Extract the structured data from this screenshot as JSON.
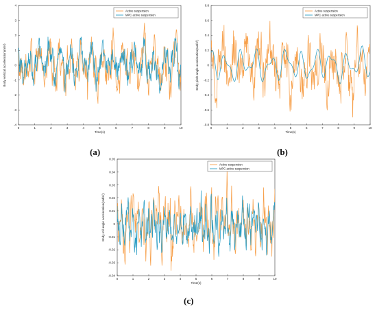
{
  "figure": {
    "panel_labels": [
      "(a)",
      "(b)",
      "(c)"
    ]
  },
  "colors": {
    "active": "#F7A04B",
    "mpc": "#2A9DC4"
  },
  "chart_data": [
    {
      "panel": "(a)",
      "type": "line",
      "xlabel": "Time(s)",
      "ylabel": "Body vertical acceleration(m/s²)",
      "xlim": [
        0,
        10
      ],
      "ylim": [
        -4,
        4
      ],
      "xticks": [
        "0",
        "1",
        "2",
        "3",
        "4",
        "5",
        "6",
        "7",
        "8",
        "9",
        "10"
      ],
      "yticks": [
        "-4",
        "-3",
        "-2",
        "-1",
        "0",
        "1",
        "2",
        "3",
        "4"
      ],
      "legend": "top-right",
      "series": [
        {
          "name": "Active suspension",
          "color": "#F7A04B",
          "amplitude": 1.3,
          "peak": 3.2,
          "base_freq": 1.55
        },
        {
          "name": "MPC active suspension",
          "color": "#2A9DC4",
          "amplitude": 0.95,
          "peak": 1.9,
          "base_freq": 1.55
        }
      ]
    },
    {
      "panel": "(b)",
      "type": "line",
      "xlabel": "Time(s)",
      "ylabel": "Body pitch angle acceleration(rad/s²)",
      "xlim": [
        0,
        10
      ],
      "ylim": [
        -0.8,
        0.8
      ],
      "xticks": [
        "0",
        "1",
        "2",
        "3",
        "4",
        "5",
        "6",
        "7",
        "8",
        "9",
        "10"
      ],
      "yticks": [
        "-0.8",
        "-0.6",
        "-0.4",
        "-0.2",
        "0",
        "0.2",
        "0.4",
        "0.6",
        "0.8"
      ],
      "legend": "top-right",
      "series": [
        {
          "name": "Active suspension",
          "color": "#F7A04B",
          "amplitude": 0.3,
          "peak": 0.7,
          "base_freq": 1.3
        },
        {
          "name": "MPC active suspension",
          "color": "#2A9DC4",
          "amplitude": 0.17,
          "peak": 0.33,
          "base_freq": 1.05
        }
      ]
    },
    {
      "panel": "(c)",
      "type": "line",
      "xlabel": "Time(s)",
      "ylabel": "Body roll angle acceleration(rad/s²)",
      "xlim": [
        0,
        10
      ],
      "ylim": [
        -0.04,
        0.05
      ],
      "xticks": [
        "0",
        "1",
        "2",
        "3",
        "4",
        "5",
        "6",
        "7",
        "8",
        "9",
        "10"
      ],
      "yticks": [
        "-0.04",
        "-0.03",
        "-0.02",
        "-0.01",
        "0",
        "0.01",
        "0.02",
        "0.03",
        "0.04",
        "0.05"
      ],
      "legend": "top-right",
      "series": [
        {
          "name": "Active suspension",
          "color": "#F7A04B",
          "amplitude": 0.017,
          "peak": 0.042,
          "base_freq": 3.0
        },
        {
          "name": "MPC active suspension",
          "color": "#2A9DC4",
          "amplitude": 0.012,
          "peak": 0.03,
          "base_freq": 3.0
        }
      ]
    }
  ]
}
